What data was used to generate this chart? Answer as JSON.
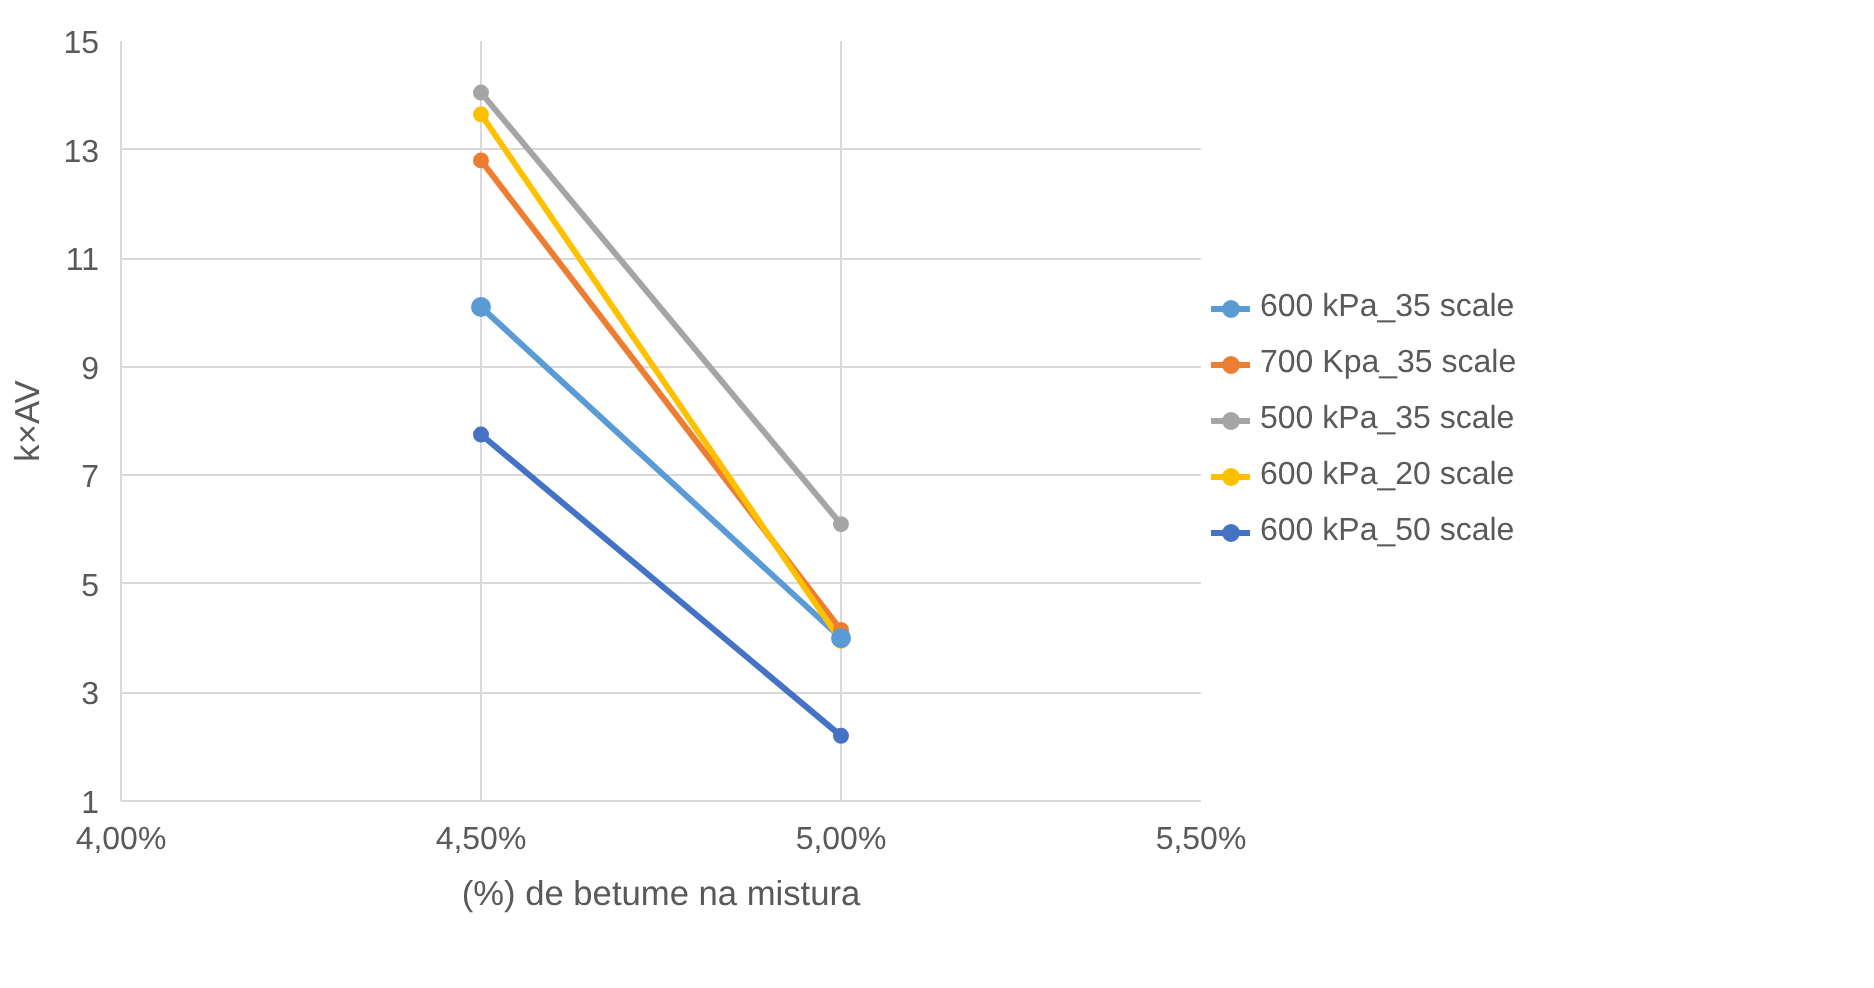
{
  "chart_data": {
    "type": "line",
    "xlabel": "(%) de betume na mistura",
    "ylabel": "k×AV",
    "x": [
      0.045,
      0.05
    ],
    "series": [
      {
        "name": "600 kPa_35 scale",
        "color": "#5b9bd5",
        "values": [
          10.1,
          4.0
        ]
      },
      {
        "name": "700 Kpa_35 scale",
        "color": "#ed7d31",
        "values": [
          12.8,
          4.15
        ]
      },
      {
        "name": "500 kPa_35 scale",
        "color": "#a5a5a5",
        "values": [
          14.05,
          6.1
        ]
      },
      {
        "name": "600 kPa_20 scale",
        "color": "#ffc000",
        "values": [
          13.65,
          3.95
        ]
      },
      {
        "name": "600 kPa_50 scale",
        "color": "#4472c4",
        "values": [
          7.75,
          2.2
        ]
      }
    ],
    "xlim": [
      0.04,
      0.055
    ],
    "xticks": [
      {
        "value": 0.04,
        "label": "4,00%"
      },
      {
        "value": 0.045,
        "label": "4,50%"
      },
      {
        "value": 0.05,
        "label": "5,00%"
      },
      {
        "value": 0.055,
        "label": "5,50%"
      }
    ],
    "ylim": [
      1,
      15
    ],
    "yticks": [
      1,
      3,
      5,
      7,
      9,
      11,
      13,
      15
    ],
    "grid": true,
    "legend": "right",
    "marker": "circle",
    "line_style": "solid"
  }
}
